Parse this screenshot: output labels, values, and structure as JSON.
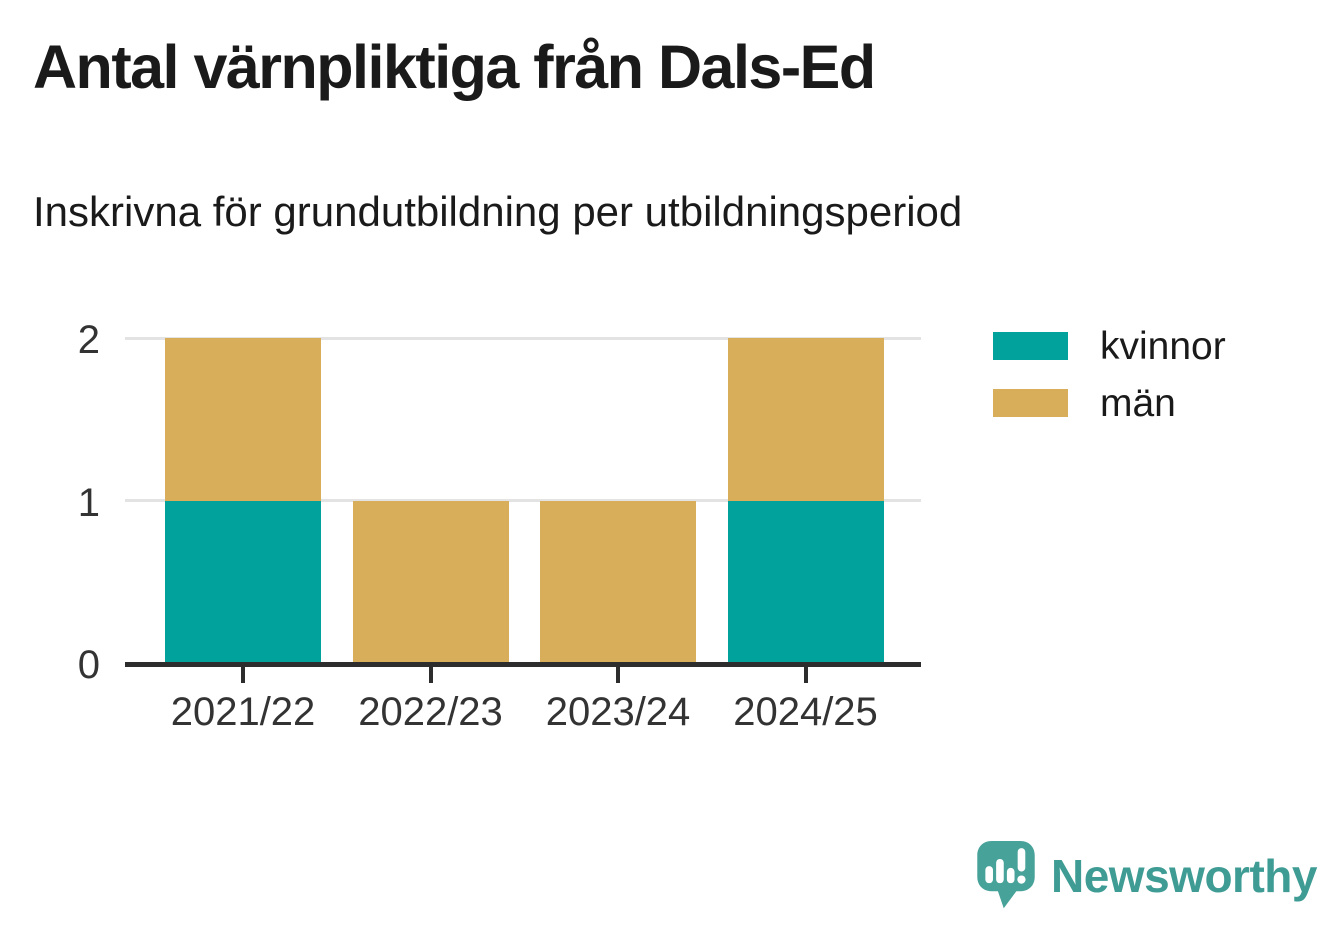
{
  "header": {
    "title": "Antal värnpliktiga från Dals-Ed",
    "subtitle": "Inskrivna för grundutbildning per utbildningsperiod"
  },
  "chart_data": {
    "type": "bar",
    "stacked": true,
    "title": "Antal värnpliktiga från Dals-Ed",
    "subtitle": "Inskrivna för grundutbildning per utbildningsperiod",
    "categories": [
      "2021/22",
      "2022/23",
      "2023/24",
      "2024/25"
    ],
    "series": [
      {
        "name": "kvinnor",
        "color": "#00a29b",
        "values": [
          1,
          0,
          0,
          1
        ]
      },
      {
        "name": "män",
        "color": "#d9ae5b",
        "values": [
          1,
          1,
          1,
          1
        ]
      }
    ],
    "totals": [
      2,
      1,
      1,
      2
    ],
    "xlabel": "",
    "ylabel": "",
    "ylim": [
      0,
      2
    ],
    "yticks": [
      0,
      1,
      2
    ],
    "grid": true,
    "legend_position": "right"
  },
  "colors": {
    "axis": "#2d2d2d",
    "grid": "#e3e3e3",
    "title_text": "#1a1a1a",
    "axis_text": "#333333",
    "brand_teal": "#3f9c95",
    "brand_icon_teal": "#47a29a"
  },
  "footer": {
    "brand": "Newsworthy"
  }
}
